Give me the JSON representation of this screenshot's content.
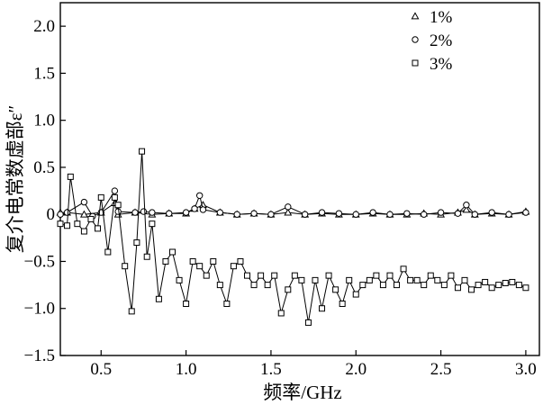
{
  "chart_data": {
    "type": "line",
    "xlabel": "频率/GHz",
    "ylabel": "复介电常数虚部ε″",
    "xlim": [
      0.26,
      3.08
    ],
    "ylim": [
      -1.5,
      2.25
    ],
    "x_ticks": [
      0.5,
      1.0,
      1.5,
      2.0,
      2.5,
      3.0
    ],
    "x_tick_labels": [
      "0.5",
      "1.0",
      "1.5",
      "2.0",
      "2.5",
      "3.0"
    ],
    "y_ticks": [
      2.0,
      1.5,
      1.0,
      0.5,
      0,
      -0.5,
      -1.0,
      -1.5
    ],
    "y_tick_labels": [
      "2.0",
      "1.5",
      "1.0",
      "0.5",
      "0",
      "−0.5",
      "−1.0",
      "−1.5"
    ],
    "grid": false,
    "legend_position": "top-right",
    "series": [
      {
        "name": "1%",
        "marker": "triangle",
        "x": [
          0.26,
          0.3,
          0.4,
          0.5,
          0.58,
          0.6,
          0.7,
          0.8,
          0.9,
          1.0,
          1.05,
          1.1,
          1.2,
          1.3,
          1.4,
          1.5,
          1.6,
          1.7,
          1.8,
          1.9,
          2.0,
          2.1,
          2.2,
          2.3,
          2.4,
          2.5,
          2.6,
          2.65,
          2.7,
          2.8,
          2.9,
          3.0
        ],
        "y": [
          0.02,
          0.02,
          0.0,
          0.02,
          0.12,
          0.0,
          0.02,
          0.0,
          0.01,
          0.01,
          0.06,
          0.1,
          0.02,
          0.0,
          0.01,
          0.0,
          0.02,
          0.0,
          0.01,
          0.0,
          0.0,
          0.01,
          0.0,
          0.0,
          0.01,
          0.0,
          0.02,
          0.05,
          0.0,
          0.01,
          0.0,
          0.03
        ]
      },
      {
        "name": "2%",
        "marker": "circle",
        "x": [
          0.26,
          0.3,
          0.4,
          0.45,
          0.5,
          0.58,
          0.6,
          0.7,
          0.75,
          0.8,
          0.9,
          1.0,
          1.05,
          1.08,
          1.1,
          1.2,
          1.3,
          1.4,
          1.5,
          1.6,
          1.7,
          1.8,
          1.9,
          2.0,
          2.1,
          2.2,
          2.3,
          2.4,
          2.5,
          2.6,
          2.65,
          2.7,
          2.8,
          2.9,
          3.0
        ],
        "y": [
          0.0,
          0.02,
          0.13,
          -0.02,
          0.02,
          0.25,
          0.03,
          0.02,
          0.03,
          0.02,
          0.01,
          0.02,
          0.06,
          0.2,
          0.05,
          0.02,
          0.0,
          0.01,
          0.0,
          0.08,
          0.0,
          0.02,
          0.01,
          0.0,
          0.02,
          0.0,
          0.01,
          0.0,
          0.02,
          0.01,
          0.1,
          0.0,
          0.02,
          0.0,
          0.02
        ]
      },
      {
        "name": "3%",
        "marker": "square",
        "x": [
          0.26,
          0.3,
          0.32,
          0.36,
          0.4,
          0.44,
          0.48,
          0.5,
          0.54,
          0.58,
          0.6,
          0.64,
          0.68,
          0.71,
          0.74,
          0.77,
          0.8,
          0.84,
          0.88,
          0.92,
          0.96,
          1.0,
          1.04,
          1.08,
          1.12,
          1.16,
          1.2,
          1.24,
          1.28,
          1.32,
          1.36,
          1.4,
          1.44,
          1.48,
          1.52,
          1.56,
          1.6,
          1.64,
          1.68,
          1.72,
          1.76,
          1.8,
          1.84,
          1.88,
          1.92,
          1.96,
          2.0,
          2.04,
          2.08,
          2.12,
          2.16,
          2.2,
          2.24,
          2.28,
          2.32,
          2.36,
          2.4,
          2.44,
          2.48,
          2.52,
          2.56,
          2.6,
          2.64,
          2.68,
          2.72,
          2.76,
          2.8,
          2.84,
          2.88,
          2.92,
          2.96,
          3.0
        ],
        "y": [
          -0.1,
          -0.12,
          0.4,
          -0.1,
          -0.18,
          -0.05,
          -0.15,
          0.18,
          -0.4,
          0.18,
          0.1,
          -0.55,
          -1.03,
          -0.3,
          0.67,
          -0.45,
          -0.1,
          -0.9,
          -0.5,
          -0.4,
          -0.7,
          -0.95,
          -0.5,
          -0.55,
          -0.65,
          -0.5,
          -0.75,
          -0.95,
          -0.55,
          -0.5,
          -0.65,
          -0.75,
          -0.65,
          -0.75,
          -0.65,
          -1.05,
          -0.8,
          -0.65,
          -0.7,
          -1.15,
          -0.7,
          -1.0,
          -0.65,
          -0.8,
          -0.95,
          -0.7,
          -0.85,
          -0.75,
          -0.7,
          -0.65,
          -0.75,
          -0.65,
          -0.75,
          -0.58,
          -0.7,
          -0.7,
          -0.75,
          -0.65,
          -0.7,
          -0.75,
          -0.65,
          -0.78,
          -0.7,
          -0.8,
          -0.75,
          -0.72,
          -0.78,
          -0.75,
          -0.73,
          -0.72,
          -0.75,
          -0.78
        ]
      }
    ]
  }
}
